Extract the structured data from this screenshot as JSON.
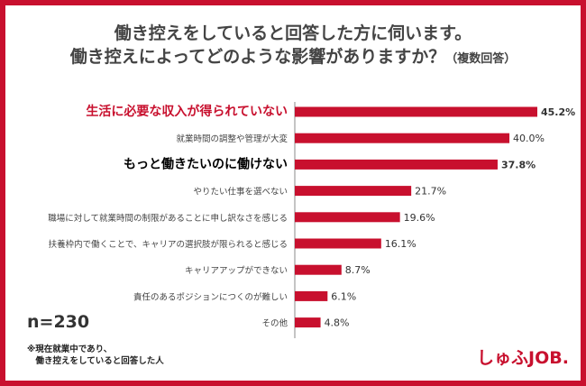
{
  "title": {
    "line1": "働き控えをしていると回答した方に伺います。",
    "line2": "働き控えによってどのような影響がありますか？",
    "note": "（複数回答）"
  },
  "sample": "n=230",
  "footnote": "※現在就業中であり、\n　働き控えをしていると回答した人",
  "brand": "しゅふJOB.",
  "colors": {
    "bar": "#c8102e",
    "highlight": "#c8102e",
    "emphasis": "#000000",
    "label": "#444444",
    "frame": "#c8102e"
  },
  "chart_data": {
    "type": "bar",
    "orientation": "horizontal",
    "categories": [
      "生活に必要な収入が得られていない",
      "就業時間の調整や管理が大変",
      "もっと働きたいのに働けない",
      "やりたい仕事を選べない",
      "職場に対して就業時間の制限があることに申し訳なさを感じる",
      "扶養枠内で働くことで、キャリアの選択肢が限られると感じる",
      "キャリアアップができない",
      "責任のあるポジションにつくのが難しい",
      "その他"
    ],
    "values": [
      45.2,
      40.0,
      37.8,
      21.7,
      19.6,
      16.1,
      8.7,
      6.1,
      4.8
    ],
    "value_labels": [
      "45.2%",
      "40.0%",
      "37.8%",
      "21.7%",
      "19.6%",
      "16.1%",
      "8.7%",
      "6.1%",
      "4.8%"
    ],
    "emphasis": [
      "highlight",
      "normal",
      "bold",
      "normal",
      "normal",
      "normal",
      "normal",
      "normal",
      "normal"
    ],
    "xlim": [
      0,
      50
    ],
    "grid": false,
    "legend": "none"
  }
}
